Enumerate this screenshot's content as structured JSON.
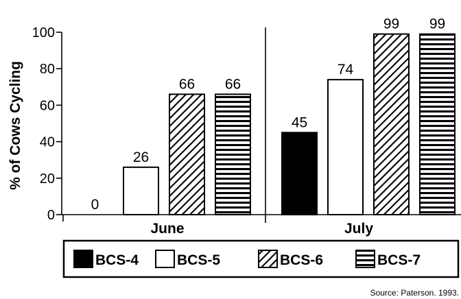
{
  "chart_data": {
    "type": "bar",
    "ylabel": "% of Cows Cycling",
    "ylim": [
      0,
      100
    ],
    "yticks": [
      0,
      20,
      40,
      60,
      80,
      100
    ],
    "groups": [
      "June",
      "July"
    ],
    "series": [
      {
        "name": "BCS-4",
        "values": [
          0,
          45
        ],
        "labels": [
          "0",
          "45"
        ],
        "pattern": "solid"
      },
      {
        "name": "BCS-5",
        "values": [
          0,
          74
        ],
        "labels": [
          "",
          "74"
        ],
        "pattern": "empty"
      },
      {
        "name": "BCS-6",
        "values": [
          66,
          99
        ],
        "labels": [
          "66",
          "99"
        ],
        "pattern": "diagonal"
      },
      {
        "name": "BCS-7",
        "values": [
          66,
          99
        ],
        "labels": [
          "66",
          "99"
        ],
        "pattern": "horizontal"
      }
    ],
    "june_extra_bar": {
      "series": "BCS-5",
      "value": 26,
      "label": "26"
    },
    "legend_position": "bottom",
    "source": "Source: Paterson. 1993."
  },
  "colors": {
    "ink": "#000000",
    "background": "#ffffff"
  }
}
